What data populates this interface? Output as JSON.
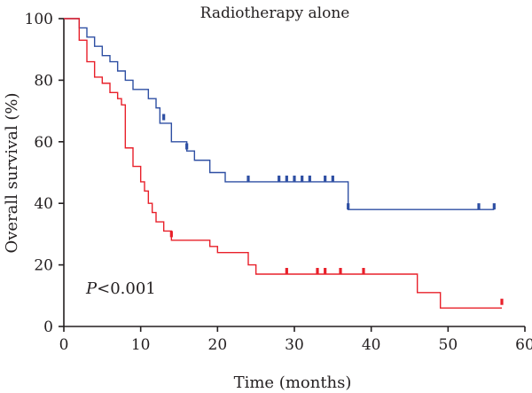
{
  "chart_data": {
    "type": "line",
    "title": "Radiotherapy alone",
    "xlabel": "Time (months)",
    "ylabel": "Overall survival (%)",
    "xlim": [
      0,
      60
    ],
    "ylim": [
      0,
      100
    ],
    "xticks": [
      0,
      10,
      20,
      30,
      40,
      50,
      60
    ],
    "yticks": [
      0,
      20,
      40,
      60,
      80,
      100
    ],
    "grid": false,
    "annotation": {
      "p_label": "P",
      "p_rest": "<0.001"
    },
    "series": [
      {
        "color": "#2e4fa3",
        "steps": [
          [
            0,
            100
          ],
          [
            2,
            97
          ],
          [
            3,
            94
          ],
          [
            4,
            91
          ],
          [
            5,
            88
          ],
          [
            6,
            86
          ],
          [
            7,
            83
          ],
          [
            8,
            80
          ],
          [
            9,
            77
          ],
          [
            11,
            74
          ],
          [
            12,
            71
          ],
          [
            12.5,
            66
          ],
          [
            14,
            60
          ],
          [
            16,
            57
          ],
          [
            17,
            54
          ],
          [
            19,
            50
          ],
          [
            21,
            47
          ],
          [
            37,
            38
          ],
          [
            56,
            38
          ]
        ],
        "censored": [
          [
            13,
            67
          ],
          [
            16,
            57.5
          ],
          [
            24,
            47
          ],
          [
            28,
            47
          ],
          [
            29,
            47
          ],
          [
            30,
            47
          ],
          [
            31,
            47
          ],
          [
            32,
            47
          ],
          [
            34,
            47
          ],
          [
            35,
            47
          ],
          [
            37,
            38
          ],
          [
            54,
            38
          ],
          [
            56,
            38
          ]
        ]
      },
      {
        "color": "#e8202a",
        "steps": [
          [
            0,
            100
          ],
          [
            2,
            93
          ],
          [
            3,
            86
          ],
          [
            4,
            81
          ],
          [
            5,
            79
          ],
          [
            6,
            76
          ],
          [
            7,
            74
          ],
          [
            7.5,
            72
          ],
          [
            8,
            58
          ],
          [
            9,
            52
          ],
          [
            10,
            47
          ],
          [
            10.5,
            44
          ],
          [
            11,
            40
          ],
          [
            11.5,
            37
          ],
          [
            12,
            34
          ],
          [
            13,
            31
          ],
          [
            14,
            28
          ],
          [
            19,
            26
          ],
          [
            20,
            24
          ],
          [
            24,
            20
          ],
          [
            25,
            17
          ],
          [
            46,
            11
          ],
          [
            49,
            6
          ],
          [
            57,
            6
          ]
        ],
        "censored": [
          [
            14,
            29
          ],
          [
            29,
            17
          ],
          [
            33,
            17
          ],
          [
            34,
            17
          ],
          [
            36,
            17
          ],
          [
            39,
            17
          ],
          [
            57,
            7
          ]
        ]
      }
    ]
  }
}
